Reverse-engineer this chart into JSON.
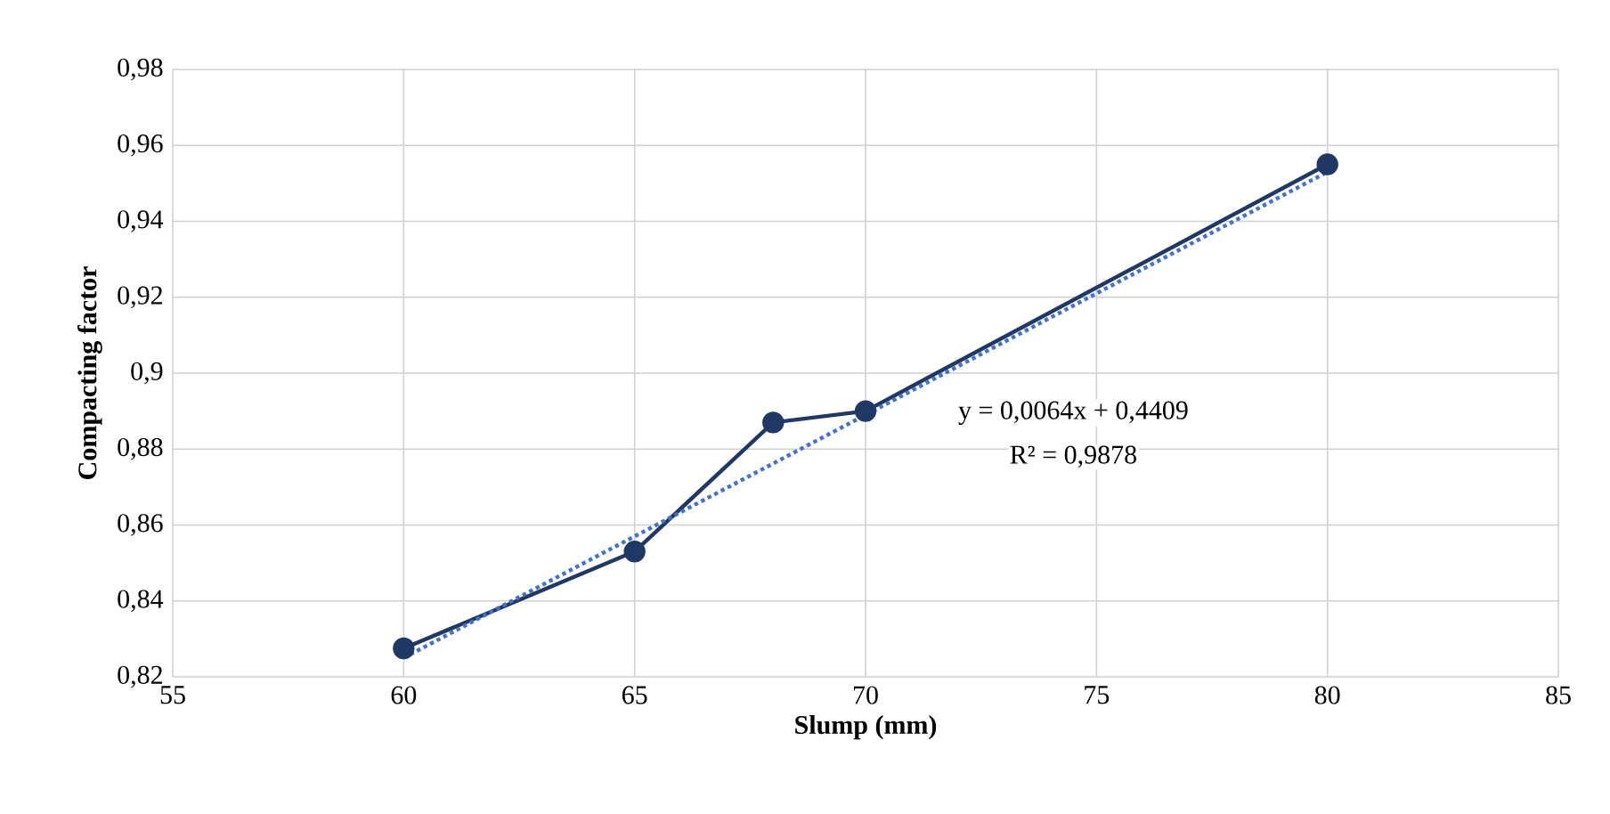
{
  "chart_data": {
    "type": "line",
    "xlabel": "Slump (mm)",
    "ylabel": "Compacting factor",
    "series": [
      {
        "color": "#1f3864",
        "marker": "circle",
        "line_style": "solid",
        "x": [
          60,
          65,
          68,
          70,
          80
        ],
        "values": [
          0.8275,
          0.853,
          0.887,
          0.89,
          0.955
        ]
      },
      {
        "color": "#4472c4",
        "marker": "none",
        "line_style": "dotted",
        "x": [
          60,
          80
        ],
        "values": [
          0.825,
          0.953
        ]
      }
    ],
    "annotations": [
      "y = 0,0064x + 0,4409",
      "R² = 0,9878"
    ],
    "xlim": [
      55,
      85
    ],
    "xticks": [
      55,
      60,
      65,
      70,
      75,
      80,
      85
    ],
    "ylim": [
      0.82,
      0.98
    ],
    "yticks": [
      {
        "value": 0.82,
        "label": "0,82"
      },
      {
        "value": 0.84,
        "label": "0,84"
      },
      {
        "value": 0.86,
        "label": "0,86"
      },
      {
        "value": 0.88,
        "label": "0,88"
      },
      {
        "value": 0.9,
        "label": "0,9"
      },
      {
        "value": 0.92,
        "label": "0,92"
      },
      {
        "value": 0.94,
        "label": "0,94"
      },
      {
        "value": 0.96,
        "label": "0,96"
      },
      {
        "value": 0.98,
        "label": "0,98"
      }
    ],
    "grid": true
  }
}
